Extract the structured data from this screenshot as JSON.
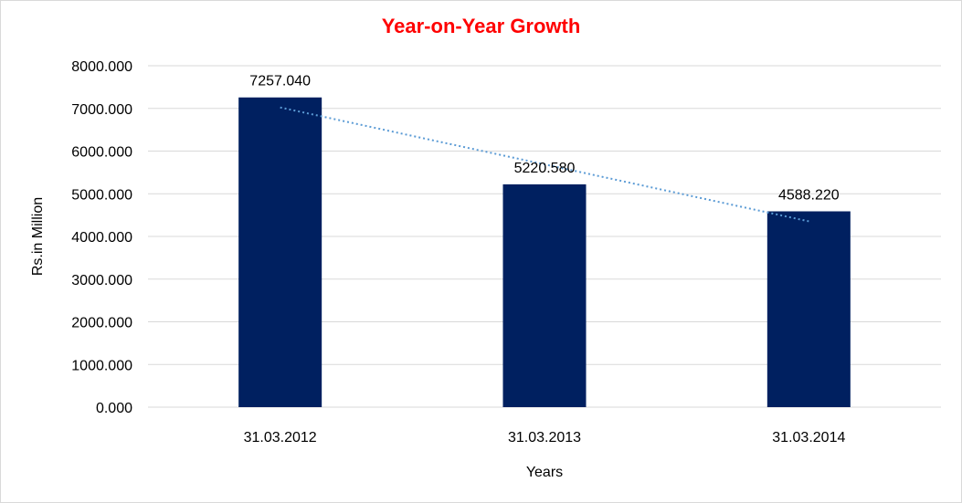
{
  "chart_data": {
    "type": "bar",
    "title": "Year-on-Year Growth",
    "xlabel": "Years",
    "ylabel": "Rs.in Million",
    "categories": [
      "31.03.2012",
      "31.03.2013",
      "31.03.2014"
    ],
    "values": [
      7257.04,
      5220.58,
      4588.22
    ],
    "value_labels": [
      "7257.040",
      "5220.580",
      "4588.220"
    ],
    "ylim": [
      0,
      8000
    ],
    "yticks": [
      "0.000",
      "1000.000",
      "2000.000",
      "3000.000",
      "4000.000",
      "5000.000",
      "6000.000",
      "7000.000",
      "8000.000"
    ],
    "grid": true,
    "trendline": "linear dotted",
    "colors": {
      "bar": "#002060",
      "trendline": "#5b9bd5",
      "title": "#ff0000",
      "grid": "#d9d9d9"
    }
  }
}
